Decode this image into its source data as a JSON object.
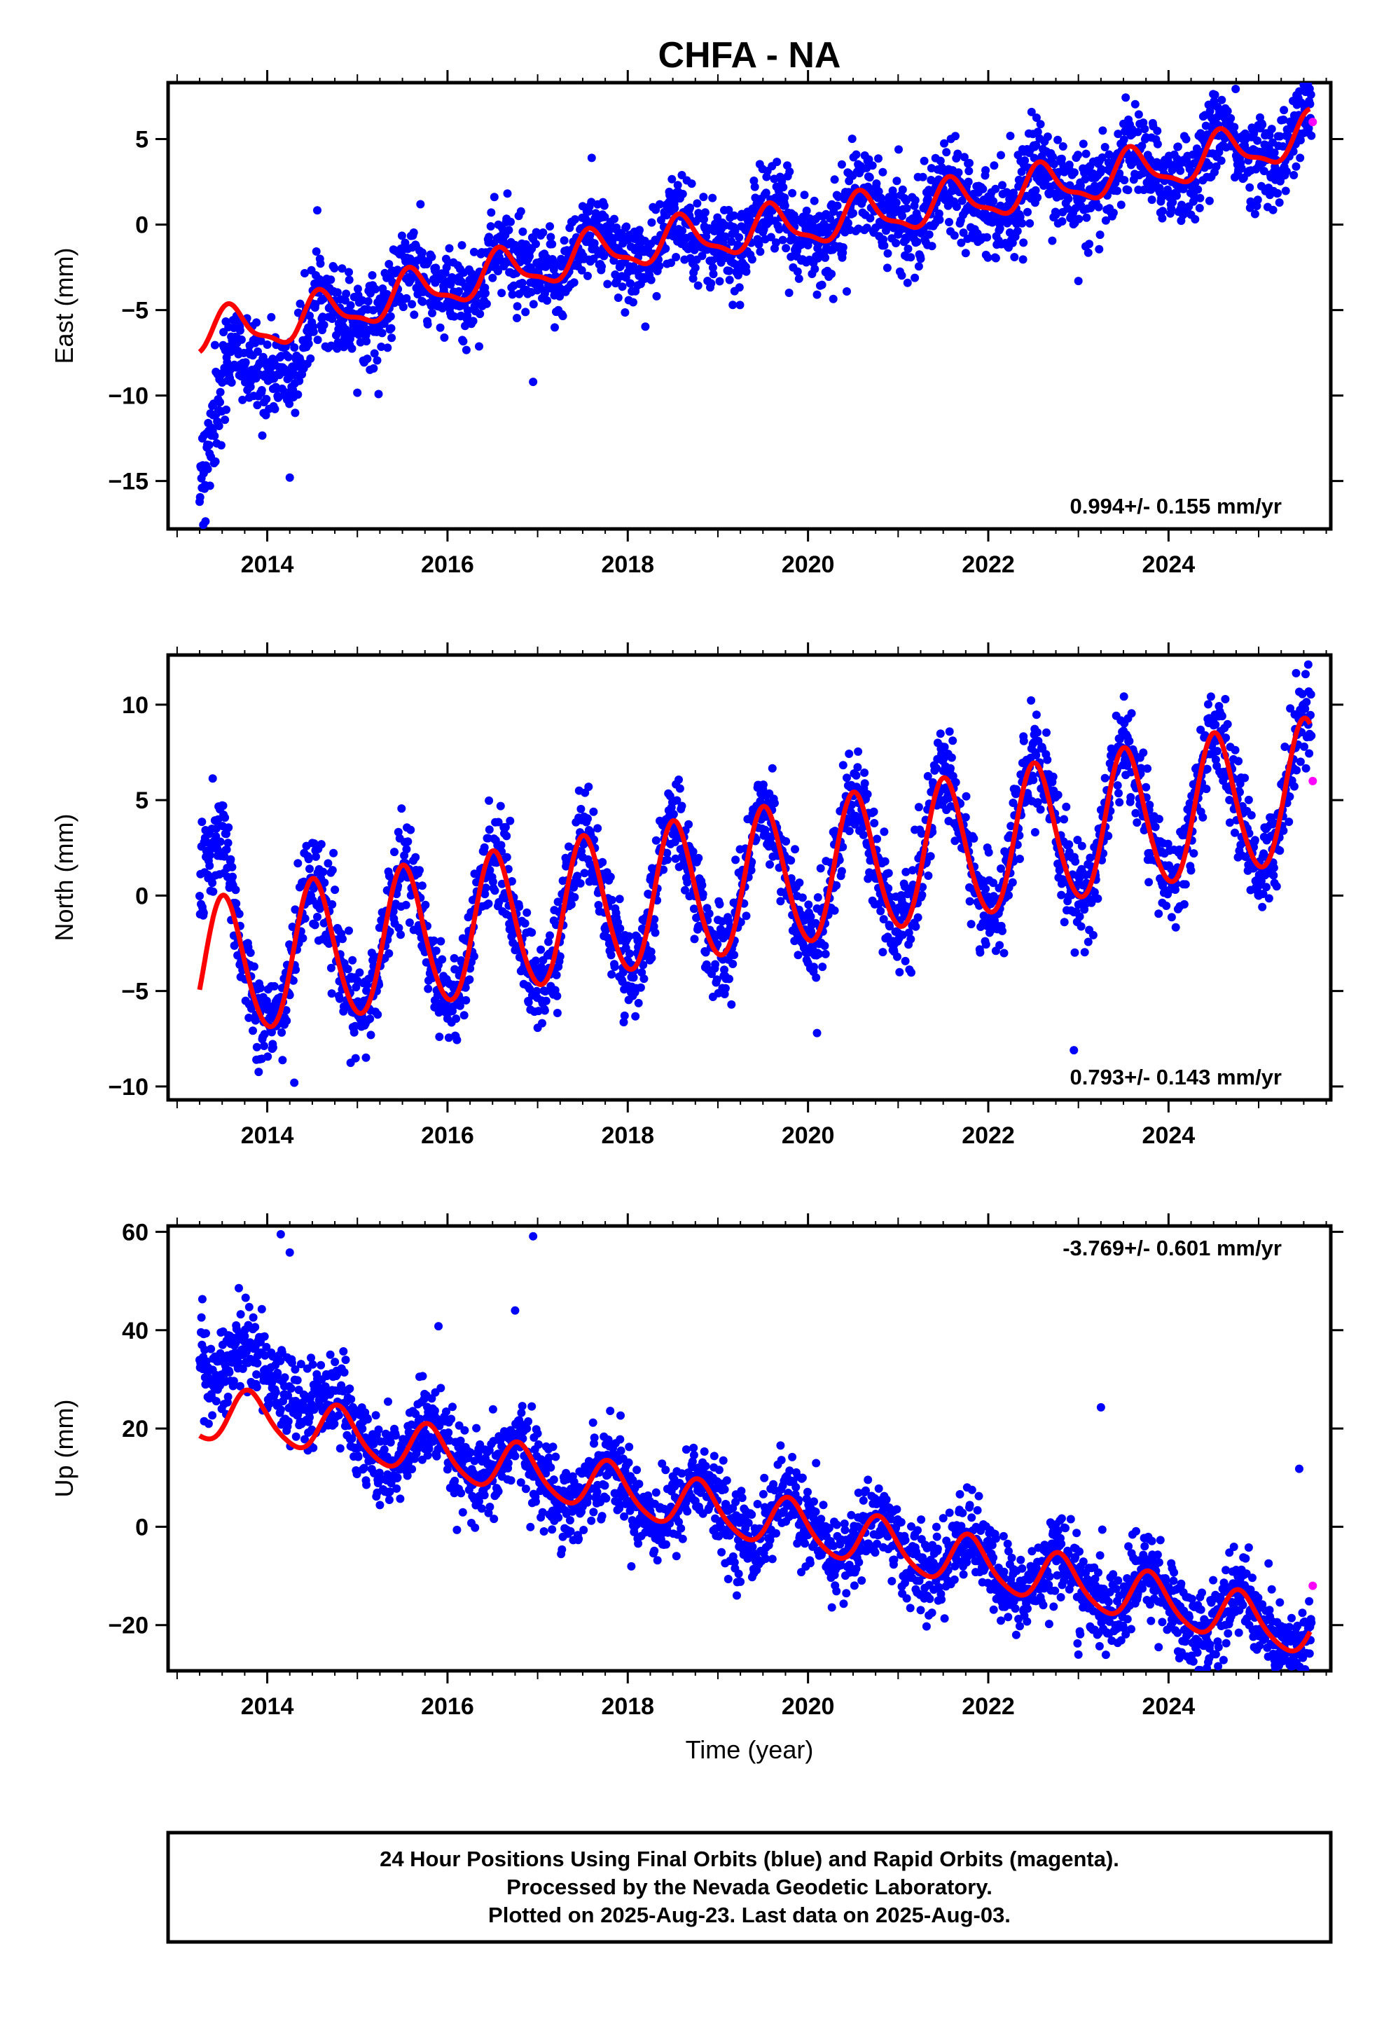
{
  "title": "CHFA - NA",
  "xlabel": "Time (year)",
  "caption": [
    "24 Hour Positions Using Final Orbits (blue) and Rapid Orbits (magenta).",
    "Processed by the Nevada Geodetic Laboratory.",
    "Plotted on 2025-Aug-23. Last data on 2025-Aug-03."
  ],
  "colors": {
    "final_orbits": "#0000ff",
    "rapid_orbits": "#ff00ff",
    "model_fit": "#ff0000",
    "frame": "#000000"
  },
  "chart_data": [
    {
      "type": "scatter",
      "ylabel": "East (mm)",
      "rate_label": "0.994+/- 0.155 mm/yr",
      "xlim": [
        2012.9,
        2025.8
      ],
      "ylim": [
        -17.8,
        8.3
      ],
      "xticks": [
        2014,
        2016,
        2018,
        2020,
        2022,
        2024
      ],
      "yticks": [
        5,
        0,
        -5,
        -10,
        -15
      ],
      "model": {
        "start": 2013.25,
        "end": 2025.57,
        "anchors": [
          [
            2013.25,
            -6.4
          ],
          [
            2014.3,
            -5.7
          ],
          [
            2016,
            -3.5
          ],
          [
            2018,
            -1.3
          ],
          [
            2020,
            0.0
          ],
          [
            2022,
            1.6
          ],
          [
            2024,
            3.4
          ],
          [
            2025.57,
            5.2
          ]
        ],
        "annual_amplitude": 1.2,
        "annual_peak_phase": 0.6,
        "semiannual_amplitude": 0.4
      },
      "final_scatter": 1.3,
      "early_offset": [
        [
          2013.2,
          -8.5
        ],
        [
          2013.6,
          -2.5
        ],
        [
          2014.4,
          -1.8
        ],
        [
          2014.6,
          0
        ]
      ],
      "outliers": [
        [
          2016.95,
          -9.2
        ],
        [
          2014.25,
          -14.8
        ],
        [
          2017.6,
          3.9
        ],
        [
          2020.1,
          -4.1
        ],
        [
          2023.0,
          -3.3
        ]
      ],
      "rapid": [
        [
          2025.6,
          6.0
        ]
      ],
      "end": 2025.59
    },
    {
      "type": "scatter",
      "ylabel": "North (mm)",
      "rate_label": "0.793+/- 0.143 mm/yr",
      "xlim": [
        2012.9,
        2025.8
      ],
      "ylim": [
        -10.7,
        12.6
      ],
      "xticks": [
        2014,
        2016,
        2018,
        2020,
        2022,
        2024
      ],
      "yticks": [
        10,
        5,
        0,
        -5,
        -10
      ],
      "model": {
        "start": 2013.25,
        "end": 2025.57,
        "anchors": [
          [
            2013.25,
            -4.2
          ],
          [
            2014,
            -3.4
          ],
          [
            2016,
            -2.0
          ],
          [
            2018,
            -0.4
          ],
          [
            2020,
            1.1
          ],
          [
            2022,
            2.6
          ],
          [
            2024,
            4.2
          ],
          [
            2025.57,
            5.4
          ]
        ],
        "annual_amplitude": 3.7,
        "annual_peak_phase": 0.52,
        "semiannual_amplitude": 0.3
      },
      "final_scatter": 1.2,
      "early_offset": [
        [
          2013.2,
          5.5
        ],
        [
          2013.55,
          2.0
        ],
        [
          2013.7,
          0
        ]
      ],
      "outliers": [
        [
          2022.95,
          -8.1
        ],
        [
          2020.1,
          -7.2
        ],
        [
          2025.55,
          12.1
        ],
        [
          2014.3,
          -9.8
        ]
      ],
      "rapid": [
        [
          2025.6,
          6.0
        ]
      ],
      "end": 2025.59
    },
    {
      "type": "scatter",
      "ylabel": "Up (mm)",
      "rate_label": "-3.769+/- 0.601 mm/yr",
      "xlim": [
        2012.9,
        2025.8
      ],
      "ylim": [
        -29.3,
        61.2
      ],
      "xticks": [
        2014,
        2016,
        2018,
        2020,
        2022,
        2024
      ],
      "yticks": [
        60,
        40,
        20,
        0,
        -20
      ],
      "model": {
        "start": 2013.25,
        "end": 2025.57,
        "anchors": [
          [
            2013.25,
            22.5
          ],
          [
            2014,
            22.0
          ],
          [
            2016,
            14.5
          ],
          [
            2018,
            7.0
          ],
          [
            2020,
            -0.5
          ],
          [
            2022,
            -8.0
          ],
          [
            2024,
            -15.5
          ],
          [
            2025.57,
            -21.5
          ]
        ],
        "annual_amplitude": 5.0,
        "annual_peak_phase": 0.8,
        "semiannual_amplitude": 0.8
      },
      "final_scatter": 4.3,
      "early_offset": [
        [
          2013.2,
          26.0
        ],
        [
          2013.35,
          12.0
        ],
        [
          2014.5,
          7.0
        ],
        [
          2014.9,
          0
        ]
      ],
      "outliers": [
        [
          2014.15,
          59.5
        ],
        [
          2014.25,
          55.8
        ],
        [
          2016.95,
          59.1
        ],
        [
          2016.75,
          44.0
        ],
        [
          2015.9,
          40.8
        ],
        [
          2023.25,
          24.3
        ],
        [
          2025.45,
          11.8
        ],
        [
          2023.0,
          -26.0
        ]
      ],
      "rapid": [
        [
          2025.6,
          -12.0
        ]
      ],
      "end": 2025.59
    }
  ]
}
